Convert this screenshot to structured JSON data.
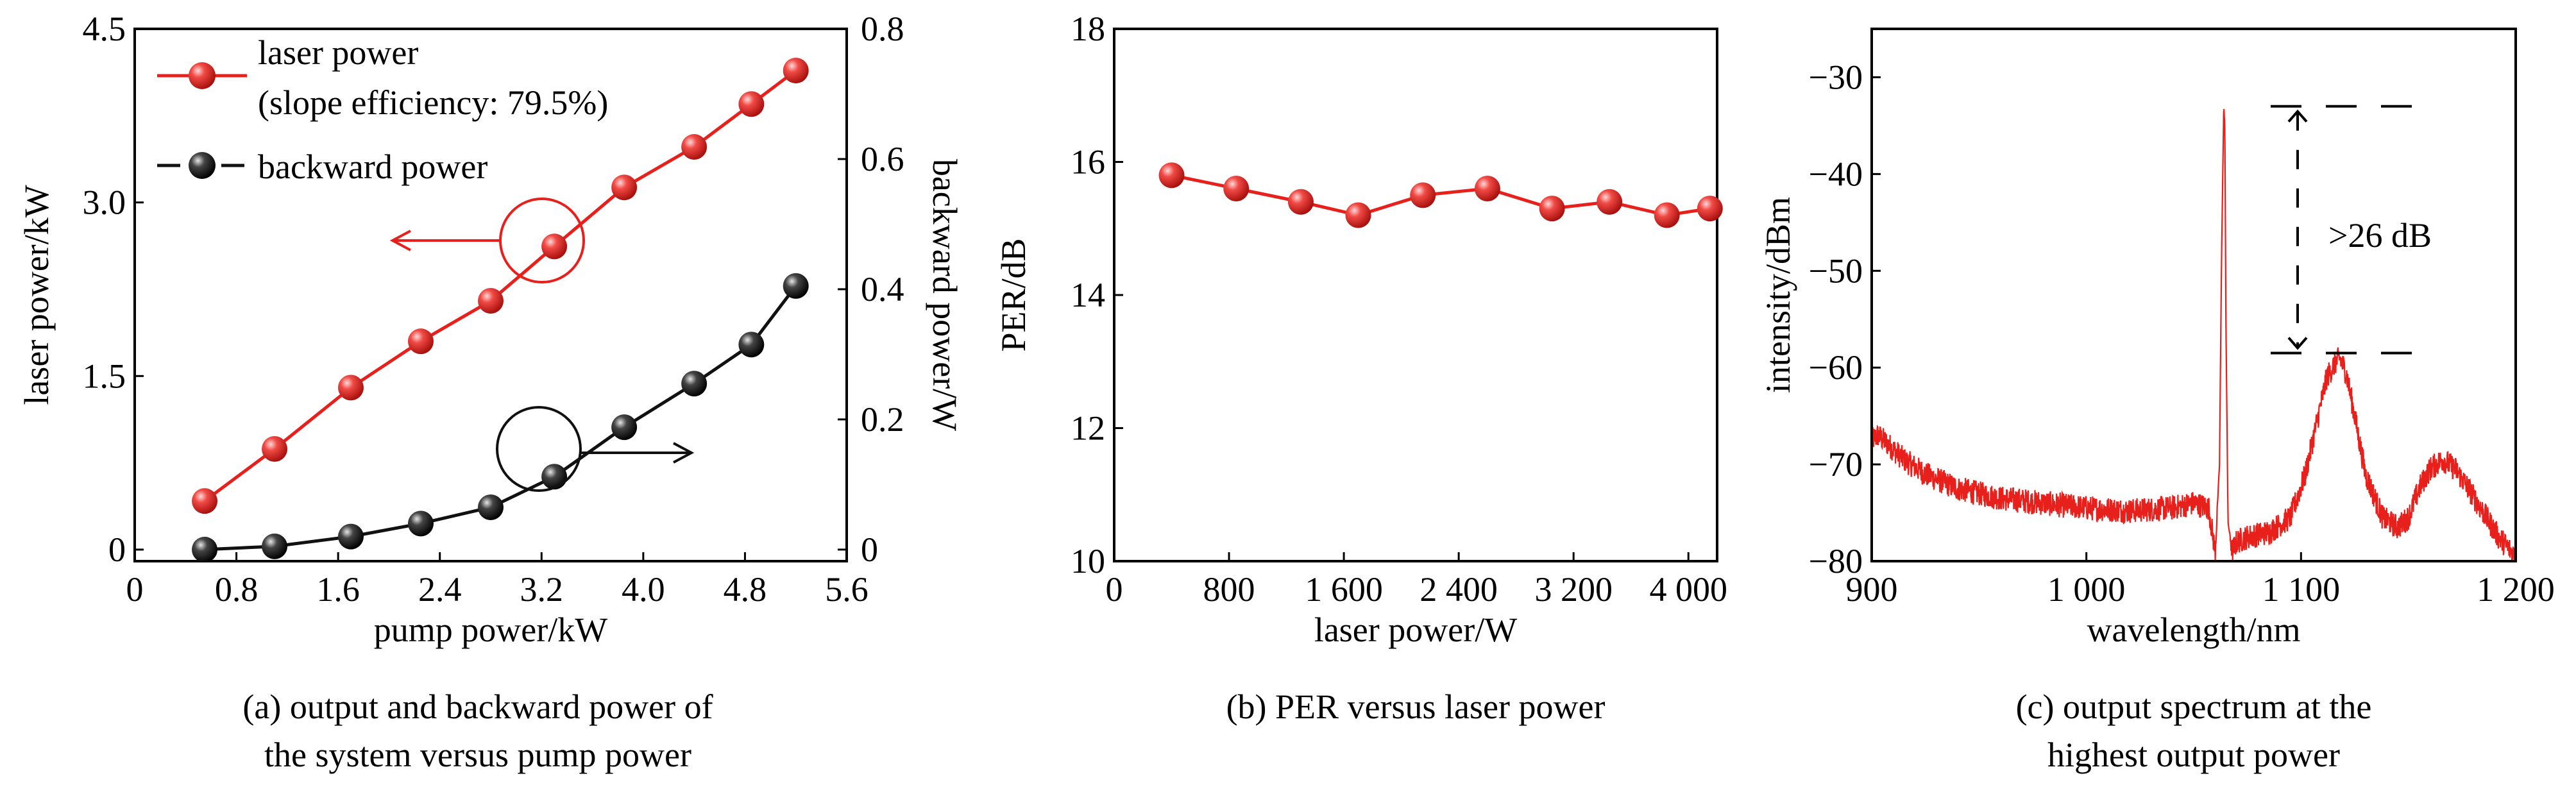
{
  "chart_data": [
    {
      "type": "line",
      "caption": [
        "(a) output and backward power of",
        "the system versus pump power"
      ],
      "xlabel": "pump power/kW",
      "ylabel": "laser power/kW",
      "y2label": "backward power/W",
      "xlim": [
        0,
        5.6
      ],
      "ylim": [
        -0.1,
        4.5
      ],
      "y2lim": [
        -0.0178,
        0.8
      ],
      "xticks": [
        "0",
        "0.8",
        "1.6",
        "2.4",
        "3.2",
        "4.0",
        "4.8",
        "5.6"
      ],
      "yticks": [
        "0",
        "1.5",
        "3.0",
        "4.5"
      ],
      "y2ticks": [
        "0",
        "0.2",
        "0.4",
        "0.6",
        "0.8"
      ],
      "legend_position": "top-left",
      "series": [
        {
          "name": "laser power",
          "legend_note": "(slope efficiency: 79.5%)",
          "axis": "left",
          "color": "#e8201c",
          "x": [
            0.55,
            1.1,
            1.7,
            2.25,
            2.8,
            3.3,
            3.85,
            4.4,
            4.85,
            5.2
          ],
          "y": [
            0.42,
            0.87,
            1.4,
            1.8,
            2.15,
            2.62,
            3.13,
            3.48,
            3.85,
            4.14
          ]
        },
        {
          "name": "backward power",
          "axis": "right",
          "color": "#111111",
          "x": [
            0.55,
            1.1,
            1.7,
            2.25,
            2.8,
            3.3,
            3.85,
            4.4,
            4.85,
            5.2
          ],
          "y": [
            0.0,
            0.005,
            0.02,
            0.04,
            0.065,
            0.112,
            0.188,
            0.255,
            0.315,
            0.405
          ]
        }
      ]
    },
    {
      "type": "line",
      "caption": [
        "(b) PER versus laser power"
      ],
      "xlabel": "laser power/W",
      "ylabel": "PER/dB",
      "xlim": [
        0,
        4200
      ],
      "ylim": [
        10,
        18
      ],
      "xticks": [
        "0",
        "800",
        "1 600",
        "2 400",
        "3 200",
        "4 000"
      ],
      "yticks": [
        "10",
        "12",
        "14",
        "16",
        "18"
      ],
      "series": [
        {
          "color": "#e8201c",
          "x": [
            400,
            850,
            1300,
            1700,
            2150,
            2600,
            3050,
            3450,
            3850,
            4150
          ],
          "y": [
            15.8,
            15.6,
            15.4,
            15.2,
            15.5,
            15.6,
            15.3,
            15.4,
            15.2,
            15.3
          ]
        }
      ]
    },
    {
      "type": "line",
      "caption": [
        "(c) output spectrum at the",
        "highest output power"
      ],
      "xlabel": "wavelength/nm",
      "ylabel": "intensity/dBm",
      "xlim": [
        900,
        1200
      ],
      "ylim": [
        -80,
        -25
      ],
      "xticks": [
        "900",
        "1 000",
        "1 100",
        "1 200"
      ],
      "yticks": [
        "-80",
        "-70",
        "-60",
        "-50",
        "-40",
        "-30"
      ],
      "annotation": ">26 dB",
      "reference_levels": [
        -33,
        -58.5
      ],
      "series": [
        {
          "color": "#e8201c",
          "x": [
            900,
            903,
            908,
            915,
            925,
            940,
            960,
            980,
            1000,
            1020,
            1040,
            1050,
            1057,
            1060,
            1062,
            1063,
            1064,
            1064.5,
            1065,
            1066,
            1068,
            1070,
            1075,
            1085,
            1095,
            1102,
            1108,
            1112,
            1116,
            1118,
            1121,
            1125,
            1130,
            1138,
            1145,
            1150,
            1155,
            1160,
            1166,
            1172,
            1178,
            1185,
            1192,
            1200
          ],
          "y": [
            -67.5,
            -67,
            -68,
            -69.5,
            -71,
            -72.5,
            -73.5,
            -74,
            -74.5,
            -74.8,
            -74.5,
            -74,
            -74.5,
            -79,
            -70,
            -48,
            -33,
            -35,
            -55,
            -76,
            -79,
            -78,
            -77.5,
            -77,
            -75.5,
            -71,
            -65,
            -61,
            -59.5,
            -59,
            -60.5,
            -65,
            -71,
            -75.5,
            -76.5,
            -75.5,
            -72.5,
            -70.5,
            -69.5,
            -70.5,
            -72.5,
            -75,
            -77.5,
            -79.5
          ]
        }
      ]
    }
  ]
}
